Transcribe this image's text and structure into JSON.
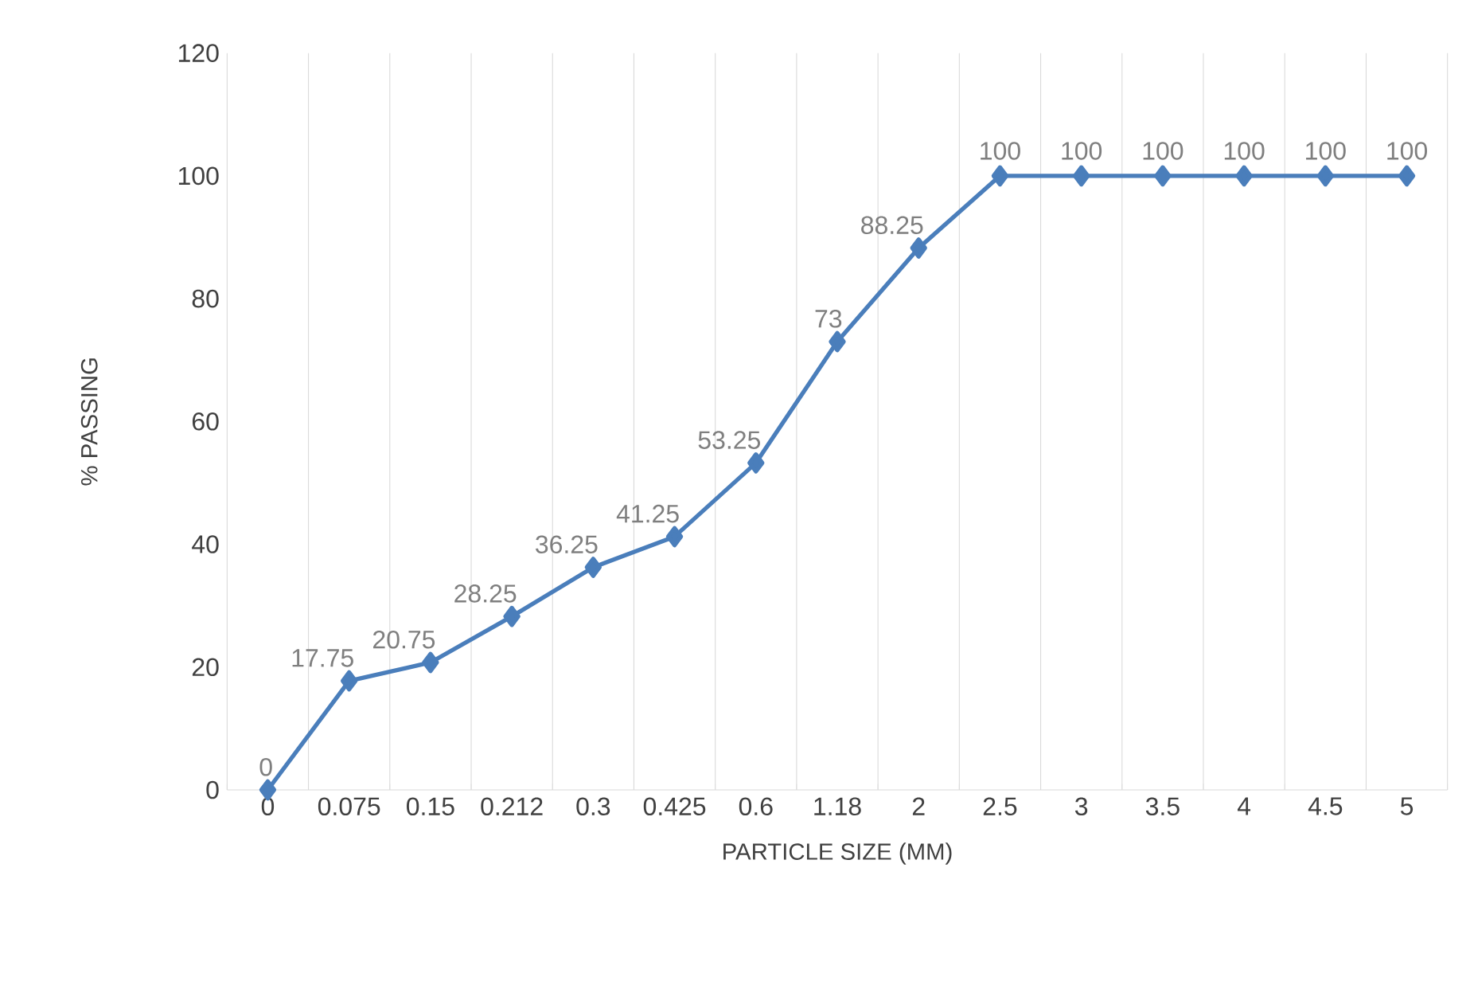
{
  "chart_data": {
    "type": "line",
    "xlabel": "PARTICLE SIZE (MM)",
    "ylabel": "% PASSING",
    "categories": [
      "0",
      "0.075",
      "0.15",
      "0.212",
      "0.3",
      "0.425",
      "0.6",
      "1.18",
      "2",
      "2.5",
      "3",
      "3.5",
      "4",
      "4.5",
      "5"
    ],
    "values": [
      0,
      17.75,
      20.75,
      28.25,
      36.25,
      41.25,
      53.25,
      73,
      88.25,
      100,
      100,
      100,
      100,
      100,
      100
    ],
    "color": "#4a7ebb",
    "marker": "diamond",
    "line_style": "solid",
    "ylim": [
      0,
      120
    ],
    "yticks": [
      0,
      20,
      40,
      60,
      80,
      100,
      120
    ],
    "grid": "x",
    "data_labels": true
  }
}
